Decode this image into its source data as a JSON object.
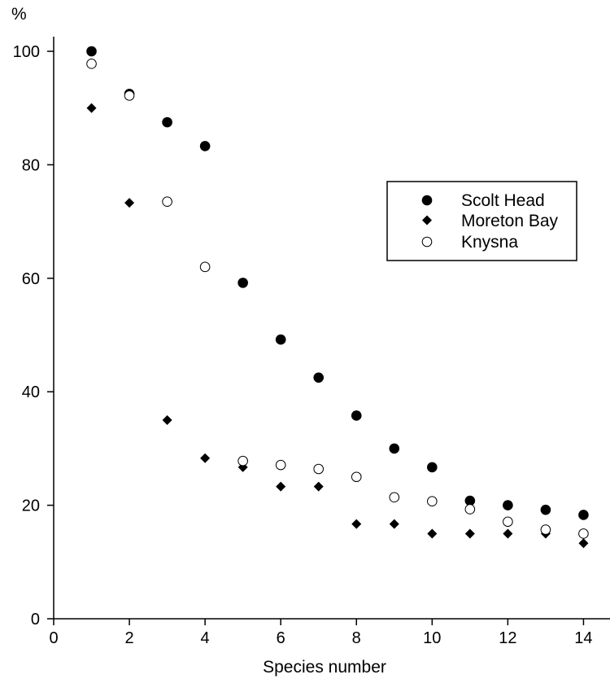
{
  "chart_data": {
    "type": "scatter",
    "title": "",
    "xlabel": "Species number",
    "ylabel": "%",
    "xlim": [
      0,
      14.7
    ],
    "ylim": [
      0,
      100
    ],
    "x_ticks": [
      0,
      2,
      4,
      6,
      8,
      10,
      12,
      14
    ],
    "y_ticks": [
      0,
      20,
      40,
      60,
      80,
      100
    ],
    "grid": false,
    "legend_position": "right",
    "series": [
      {
        "name": "Scolt Head",
        "marker": "filled-circle",
        "color": "#000000",
        "x": [
          1,
          2,
          3,
          4,
          5,
          6,
          7,
          8,
          9,
          10,
          11,
          12,
          13,
          14
        ],
        "y": [
          100,
          92.5,
          87.5,
          83.3,
          59.2,
          49.2,
          42.5,
          35.8,
          30,
          26.7,
          20.8,
          20,
          19.2,
          18.3
        ]
      },
      {
        "name": "Moreton Bay",
        "marker": "filled-diamond",
        "color": "#000000",
        "x": [
          1,
          2,
          3,
          4,
          5,
          6,
          7,
          8,
          9,
          10,
          11,
          12,
          13,
          14
        ],
        "y": [
          90,
          73.3,
          35,
          28.3,
          26.7,
          23.3,
          23.3,
          16.7,
          16.7,
          15,
          15,
          15,
          15,
          13.3
        ]
      },
      {
        "name": "Knysna",
        "marker": "open-circle",
        "color": "#000000",
        "x": [
          1,
          2,
          3,
          4,
          5,
          6,
          7,
          8,
          9,
          10,
          11,
          12,
          13,
          14
        ],
        "y": [
          97.8,
          92.2,
          73.5,
          62,
          27.8,
          27.1,
          26.4,
          25,
          21.4,
          20.7,
          19.3,
          17.1,
          15.7,
          15
        ]
      }
    ]
  }
}
